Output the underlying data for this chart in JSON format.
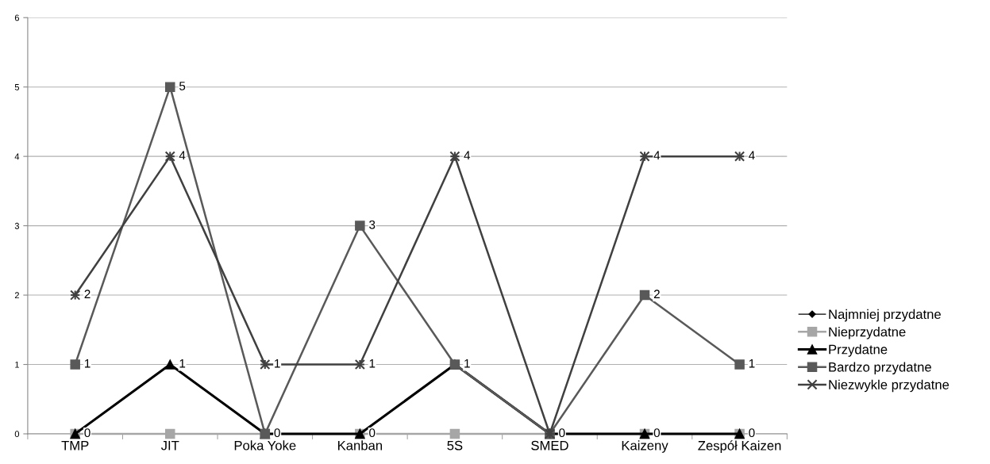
{
  "chart_data": {
    "type": "line",
    "categories": [
      "TMP",
      "JIT",
      "Poka Yoke",
      "Kanban",
      "5S",
      "SMED",
      "Kaizeny",
      "Zespół Kaizen"
    ],
    "series": [
      {
        "name": "Najmniej przydatne",
        "color": "#000000",
        "marker": "diamond",
        "values": [
          null,
          null,
          null,
          null,
          null,
          null,
          null,
          null
        ]
      },
      {
        "name": "Nieprzydatne",
        "color": "#a6a6a6",
        "marker": "square",
        "values": [
          0,
          0,
          0,
          0,
          0,
          0,
          0,
          0
        ]
      },
      {
        "name": "Przydatne",
        "color": "#000000",
        "marker": "triangle",
        "values": [
          0,
          1,
          0,
          0,
          1,
          0,
          0,
          0
        ],
        "value_labels": [
          "0",
          "1",
          "0",
          "0",
          "1",
          "0",
          "0",
          "0"
        ]
      },
      {
        "name": "Bardzo przydatne",
        "color": "#595959",
        "marker": "square",
        "values": [
          1,
          5,
          0,
          3,
          1,
          0,
          2,
          1
        ],
        "value_labels": [
          "1",
          "5",
          null,
          "3",
          null,
          null,
          "2",
          "1"
        ]
      },
      {
        "name": "Niezwykle przydatne",
        "color": "#404040",
        "marker": "cross",
        "values": [
          2,
          4,
          1,
          1,
          4,
          0,
          4,
          4
        ],
        "value_labels": [
          "2",
          "4",
          "1",
          "1",
          "4",
          null,
          "4",
          "4"
        ]
      }
    ],
    "ylim": [
      0,
      6
    ],
    "yticks": [
      0,
      1,
      2,
      3,
      4,
      5,
      6
    ],
    "grid": "y",
    "legend": "right"
  }
}
